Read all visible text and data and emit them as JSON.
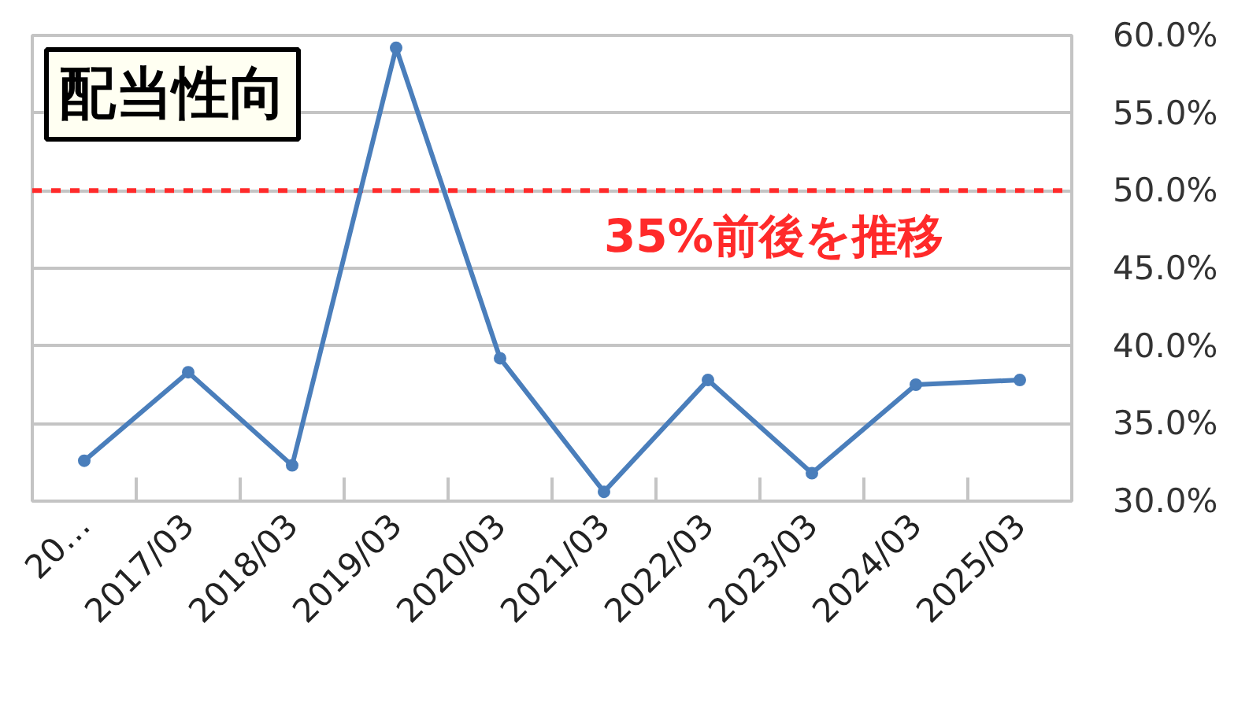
{
  "chart_data": {
    "type": "line",
    "title": "配当性向",
    "categories": [
      "20…",
      "2017/03",
      "2018/03",
      "2019/03",
      "2020/03",
      "2021/03",
      "2022/03",
      "2023/03",
      "2024/03",
      "2025/03"
    ],
    "series": [
      {
        "color": "#4a7ebb",
        "values": [
          32.6,
          38.3,
          32.3,
          59.2,
          39.2,
          30.6,
          37.8,
          31.8,
          37.5,
          37.8
        ]
      }
    ],
    "ylim": [
      30,
      60
    ],
    "yticks": [
      {
        "value": 30,
        "label": "30.0%"
      },
      {
        "value": 35,
        "label": "35.0%"
      },
      {
        "value": 40,
        "label": "40.0%"
      },
      {
        "value": 45,
        "label": "45.0%"
      },
      {
        "value": 50,
        "label": "50.0%"
      },
      {
        "value": 55,
        "label": "55.0%"
      },
      {
        "value": 60,
        "label": "60.0%"
      }
    ],
    "ref_lines": [
      {
        "axis": "y",
        "value": 50,
        "label": "35%前後を推移",
        "color": "#ff2a2a",
        "line_style": "dashed"
      }
    ],
    "grid": "y",
    "marker": "circle",
    "line_style": "solid"
  }
}
